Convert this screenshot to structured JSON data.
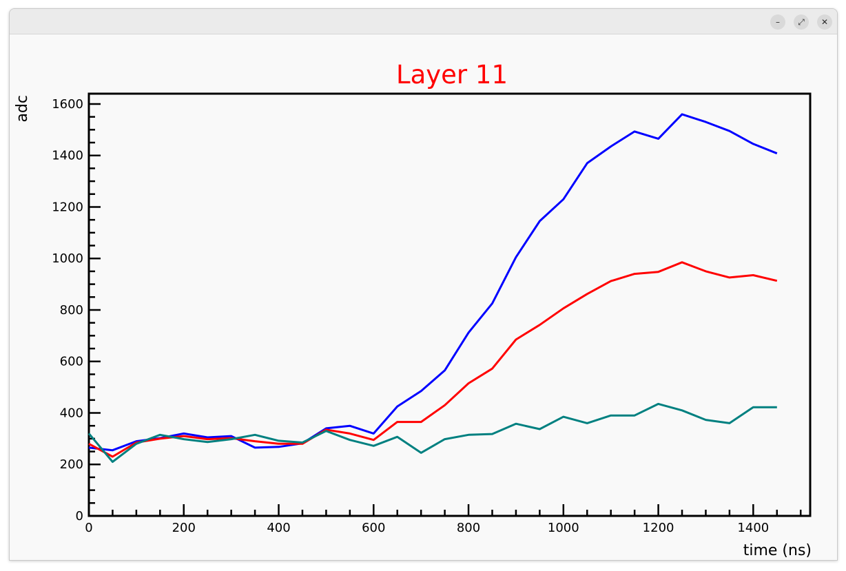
{
  "window": {
    "buttons": {
      "minimize": "–",
      "maximize": "⤢",
      "close": "✕"
    }
  },
  "chart_data": {
    "type": "line",
    "title": "Layer 11",
    "title_color": "#ff0000",
    "xlabel": "time (ns)",
    "ylabel": "adc",
    "xlim": [
      0,
      1520
    ],
    "ylim": [
      0,
      1640
    ],
    "x_ticks": [
      0,
      200,
      400,
      600,
      800,
      1000,
      1200,
      1400
    ],
    "y_ticks": [
      0,
      200,
      400,
      600,
      800,
      1000,
      1200,
      1400,
      1600
    ],
    "grid": false,
    "x": [
      0,
      50,
      100,
      150,
      200,
      250,
      300,
      350,
      400,
      450,
      500,
      550,
      600,
      650,
      700,
      750,
      800,
      850,
      900,
      950,
      1000,
      1050,
      1100,
      1150,
      1200,
      1250,
      1300,
      1350,
      1400,
      1450
    ],
    "series": [
      {
        "color": "#0000ff",
        "values": [
          265,
          255,
          290,
          302,
          320,
          305,
          310,
          265,
          268,
          282,
          340,
          350,
          320,
          425,
          485,
          565,
          712,
          825,
          1005,
          1145,
          1230,
          1370,
          1435,
          1493,
          1465,
          1560,
          1530,
          1495,
          1445,
          1408
        ]
      },
      {
        "color": "#ff0000",
        "values": [
          280,
          230,
          285,
          300,
          310,
          298,
          302,
          290,
          280,
          280,
          335,
          320,
          295,
          365,
          365,
          430,
          515,
          572,
          685,
          742,
          806,
          862,
          912,
          940,
          948,
          985,
          950,
          926,
          935,
          913
        ]
      },
      {
        "color": "#008080",
        "values": [
          320,
          210,
          280,
          315,
          298,
          287,
          298,
          315,
          292,
          285,
          330,
          295,
          272,
          307,
          245,
          298,
          315,
          318,
          358,
          337,
          385,
          360,
          390,
          390,
          435,
          410,
          373,
          360,
          422,
          422
        ]
      }
    ]
  }
}
